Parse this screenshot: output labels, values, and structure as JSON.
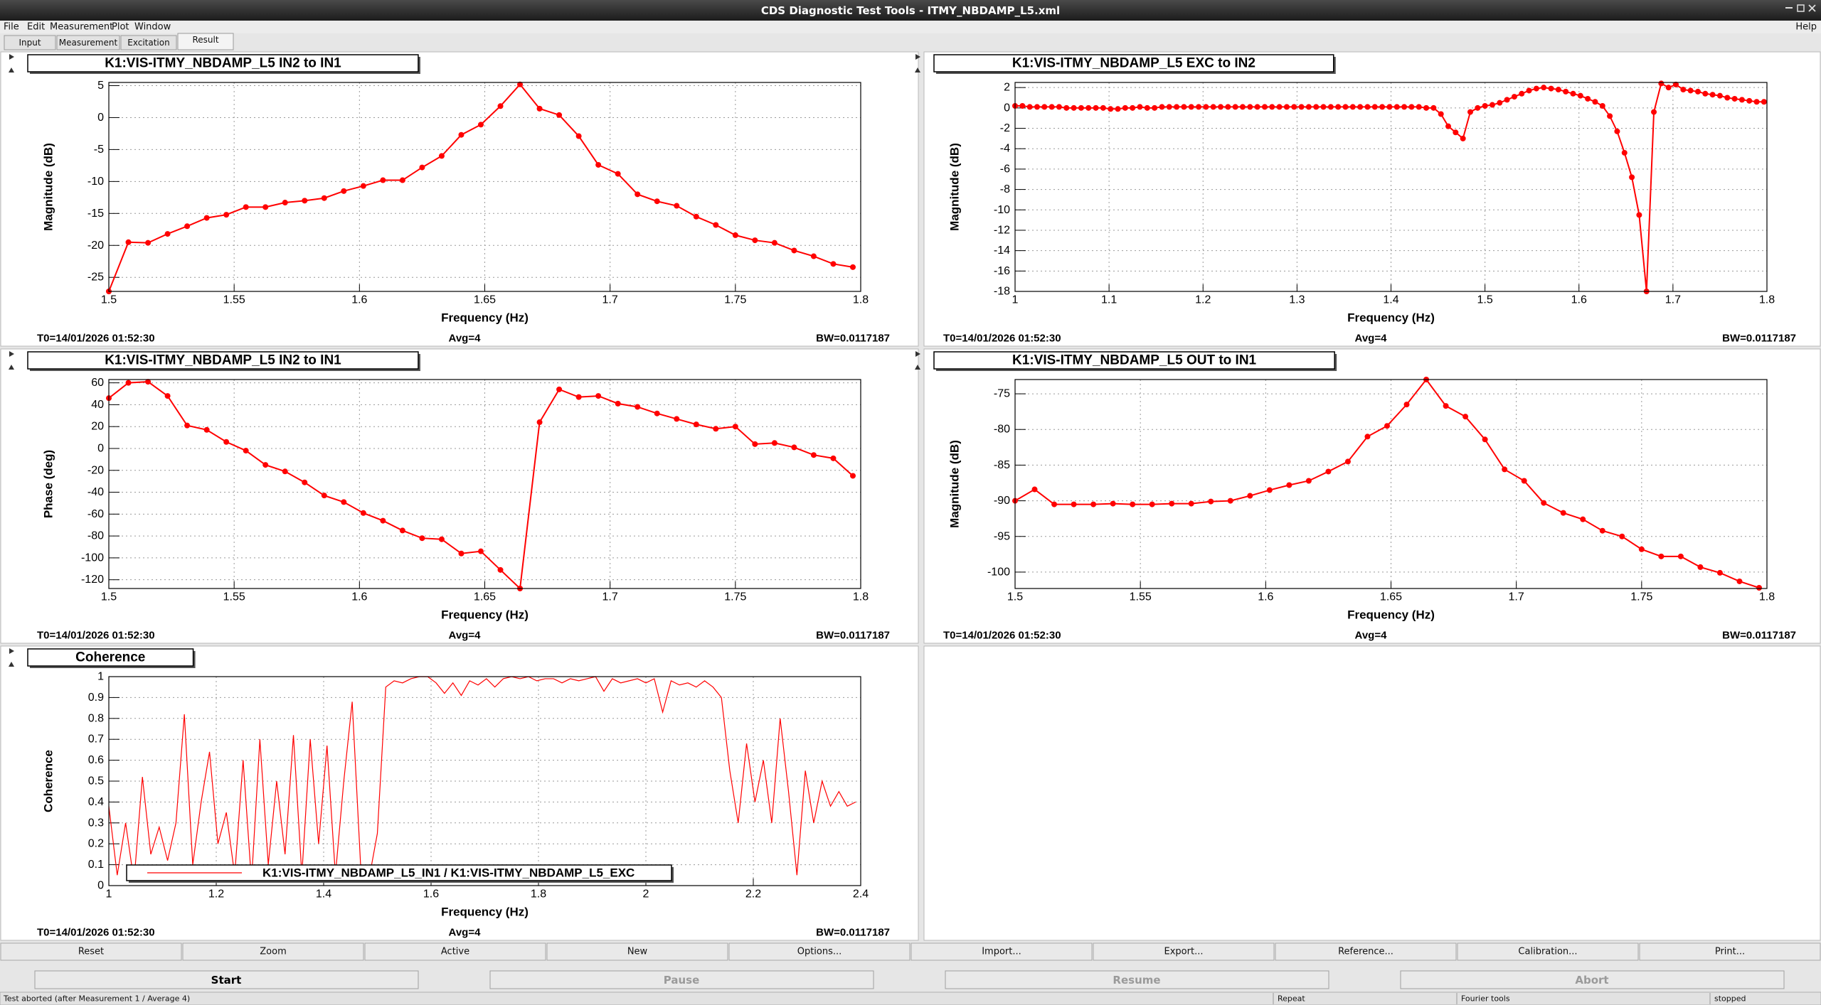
{
  "window": {
    "title": "CDS Diagnostic Test Tools - ITMY_NBDAMP_L5.xml"
  },
  "menu": {
    "items": [
      "File",
      "Edit",
      "Measurement",
      "Plot",
      "Window"
    ],
    "help": "Help"
  },
  "tabs": {
    "labels": [
      "Input",
      "Measurement",
      "Excitation",
      "Result"
    ],
    "active": 3
  },
  "chart_data": [
    {
      "type": "line",
      "title": "K1:VIS-ITMY_NBDAMP_L5 IN2 to IN1",
      "x_label": "Frequency (Hz)",
      "y_label": "Magnitude (dB)",
      "x": [
        1.5,
        1.5078125,
        1.515625,
        1.5234375,
        1.53125,
        1.5390625,
        1.546875,
        1.5546875,
        1.5625,
        1.5703125,
        1.578125,
        1.5859375,
        1.59375,
        1.6015625,
        1.609375,
        1.6171875,
        1.625,
        1.6328125,
        1.640625,
        1.6484375,
        1.65625,
        1.6640625,
        1.671875,
        1.6796875,
        1.6875,
        1.6953125,
        1.703125,
        1.7109375,
        1.71875,
        1.7265625,
        1.734375,
        1.7421875,
        1.75,
        1.7578125,
        1.765625,
        1.7734375,
        1.78125,
        1.7890625,
        1.796875
      ],
      "series": [
        {
          "color": "#ff0000",
          "values": [
            -27.2,
            -19.5,
            -19.6,
            -18.2,
            -17.0,
            -15.7,
            -15.2,
            -14.0,
            -14.0,
            -13.3,
            -13.0,
            -12.6,
            -11.5,
            -10.7,
            -9.8,
            -9.8,
            -7.8,
            -6.0,
            -2.7,
            -1.1,
            1.8,
            5.2,
            1.4,
            0.4,
            -2.9,
            -7.4,
            -8.8,
            -12.0,
            -13.1,
            -13.8,
            -15.5,
            -16.8,
            -18.4,
            -19.2,
            -19.6,
            -20.8,
            -21.7,
            -22.9,
            -23.4
          ]
        }
      ],
      "markers": true,
      "xlim": [
        1.5,
        1.8
      ],
      "ylim": [
        -27.2,
        5.5
      ],
      "xticks": [
        1.5,
        1.55,
        1.6,
        1.65,
        1.7,
        1.75,
        1.8
      ],
      "yticks": [
        5,
        0,
        -5,
        -10,
        -15,
        -20,
        -25
      ],
      "grid": true,
      "footer": [
        "T0=14/01/2026 01:52:30",
        "Avg=4",
        "BW=0.0117187"
      ]
    },
    {
      "type": "line",
      "title": "K1:VIS-ITMY_NBDAMP_L5 EXC to IN2",
      "x_label": "Frequency (Hz)",
      "y_label": "Magnitude (dB)",
      "x": [
        1,
        1.0078125,
        1.015625,
        1.0234375,
        1.03125,
        1.0390625,
        1.046875,
        1.0546875,
        1.0625,
        1.0703125,
        1.078125,
        1.0859375,
        1.09375,
        1.1015625,
        1.109375,
        1.1171875,
        1.125,
        1.1328125,
        1.140625,
        1.1484375,
        1.15625,
        1.1640625,
        1.171875,
        1.1796875,
        1.1875,
        1.1953125,
        1.203125,
        1.2109375,
        1.21875,
        1.2265625,
        1.234375,
        1.2421875,
        1.25,
        1.2578125,
        1.265625,
        1.2734375,
        1.28125,
        1.2890625,
        1.296875,
        1.3046875,
        1.3125,
        1.3203125,
        1.328125,
        1.3359375,
        1.34375,
        1.3515625,
        1.359375,
        1.3671875,
        1.375,
        1.3828125,
        1.390625,
        1.3984375,
        1.40625,
        1.4140625,
        1.421875,
        1.4296875,
        1.4375,
        1.4453125,
        1.453125,
        1.4609375,
        1.46875,
        1.4765625,
        1.484375,
        1.4921875,
        1.5,
        1.5078125,
        1.515625,
        1.5234375,
        1.53125,
        1.5390625,
        1.546875,
        1.5546875,
        1.5625,
        1.5703125,
        1.578125,
        1.5859375,
        1.59375,
        1.6015625,
        1.609375,
        1.6171875,
        1.625,
        1.6328125,
        1.640625,
        1.6484375,
        1.65625,
        1.6640625,
        1.671875,
        1.6796875,
        1.6875,
        1.6953125,
        1.703125,
        1.7109375,
        1.71875,
        1.7265625,
        1.734375,
        1.7421875,
        1.75,
        1.7578125,
        1.765625,
        1.7734375,
        1.78125,
        1.7890625,
        1.796875
      ],
      "series": [
        {
          "color": "#ff0000",
          "values": [
            0.2,
            0.2,
            0.1,
            0.1,
            0.1,
            0.1,
            0.1,
            0.0,
            0.0,
            0.0,
            0.0,
            0.0,
            0.0,
            -0.1,
            -0.1,
            0.0,
            0.0,
            0.1,
            0.0,
            0.0,
            0.1,
            0.1,
            0.1,
            0.1,
            0.1,
            0.1,
            0.1,
            0.1,
            0.1,
            0.1,
            0.1,
            0.1,
            0.1,
            0.1,
            0.1,
            0.1,
            0.1,
            0.1,
            0.1,
            0.1,
            0.1,
            0.1,
            0.1,
            0.1,
            0.1,
            0.1,
            0.1,
            0.1,
            0.1,
            0.1,
            0.1,
            0.1,
            0.1,
            0.1,
            0.1,
            0.1,
            0.0,
            0.0,
            -0.6,
            -1.8,
            -2.4,
            -3.0,
            -0.4,
            0.0,
            0.2,
            0.3,
            0.5,
            0.8,
            1.1,
            1.4,
            1.7,
            1.9,
            2.0,
            1.9,
            1.8,
            1.6,
            1.4,
            1.2,
            0.9,
            0.6,
            0.2,
            -0.8,
            -2.3,
            -4.4,
            -6.8,
            -10.5,
            -18,
            -0.4,
            2.4,
            2.0,
            2.3,
            1.8,
            1.7,
            1.6,
            1.4,
            1.3,
            1.2,
            1.0,
            0.9,
            0.8,
            0.7,
            0.6,
            0.6
          ]
        }
      ],
      "markers": true,
      "xlim": [
        1,
        1.8
      ],
      "ylim": [
        -18,
        2.5
      ],
      "xticks": [
        1,
        1.1,
        1.2,
        1.3,
        1.4,
        1.5,
        1.6,
        1.7,
        1.8
      ],
      "yticks": [
        2,
        0,
        -2,
        -4,
        -6,
        -8,
        -10,
        -12,
        -14,
        -16,
        -18
      ],
      "grid": true,
      "footer": [
        "T0=14/01/2026 01:52:30",
        "Avg=4",
        "BW=0.0117187"
      ]
    },
    {
      "type": "line",
      "title": "K1:VIS-ITMY_NBDAMP_L5 IN2 to IN1",
      "x_label": "Frequency (Hz)",
      "y_label": "Phase (deg)",
      "x": [
        1.5,
        1.5078125,
        1.515625,
        1.5234375,
        1.53125,
        1.5390625,
        1.546875,
        1.5546875,
        1.5625,
        1.5703125,
        1.578125,
        1.5859375,
        1.59375,
        1.6015625,
        1.609375,
        1.6171875,
        1.625,
        1.6328125,
        1.640625,
        1.6484375,
        1.65625,
        1.6640625,
        1.671875,
        1.6796875,
        1.6875,
        1.6953125,
        1.703125,
        1.7109375,
        1.71875,
        1.7265625,
        1.734375,
        1.7421875,
        1.75,
        1.7578125,
        1.765625,
        1.7734375,
        1.78125,
        1.7890625,
        1.796875
      ],
      "series": [
        {
          "color": "#ff0000",
          "values": [
            46,
            60,
            61,
            48,
            21,
            17,
            6,
            -2,
            -15,
            -21,
            -31,
            -43,
            -49,
            -59,
            -66,
            -75,
            -82,
            -83,
            -96,
            -94,
            -111,
            -128,
            24,
            54,
            47,
            48,
            41,
            38,
            32,
            27,
            22,
            18,
            20,
            4,
            5,
            1,
            -6,
            -9,
            -25
          ]
        }
      ],
      "markers": true,
      "xlim": [
        1.5,
        1.8
      ],
      "ylim": [
        -128,
        63
      ],
      "xticks": [
        1.5,
        1.55,
        1.6,
        1.65,
        1.7,
        1.75,
        1.8
      ],
      "yticks": [
        60,
        40,
        20,
        0,
        -20,
        -40,
        -60,
        -80,
        -100,
        -120
      ],
      "grid": true,
      "footer": [
        "T0=14/01/2026 01:52:30",
        "Avg=4",
        "BW=0.0117187"
      ]
    },
    {
      "type": "line",
      "title": "K1:VIS-ITMY_NBDAMP_L5 OUT to IN1",
      "x_label": "Frequency (Hz)",
      "y_label": "Magnitude (dB)",
      "x": [
        1.5,
        1.5078125,
        1.515625,
        1.5234375,
        1.53125,
        1.5390625,
        1.546875,
        1.5546875,
        1.5625,
        1.5703125,
        1.578125,
        1.5859375,
        1.59375,
        1.6015625,
        1.609375,
        1.6171875,
        1.625,
        1.6328125,
        1.640625,
        1.6484375,
        1.65625,
        1.6640625,
        1.671875,
        1.6796875,
        1.6875,
        1.6953125,
        1.703125,
        1.7109375,
        1.71875,
        1.7265625,
        1.734375,
        1.7421875,
        1.75,
        1.7578125,
        1.765625,
        1.7734375,
        1.78125,
        1.7890625,
        1.796875
      ],
      "series": [
        {
          "color": "#ff0000",
          "values": [
            -90,
            -88.4,
            -90.5,
            -90.5,
            -90.5,
            -90.4,
            -90.5,
            -90.5,
            -90.4,
            -90.4,
            -90.1,
            -90,
            -89.3,
            -88.5,
            -87.8,
            -87.2,
            -85.9,
            -84.5,
            -81,
            -79.5,
            -76.5,
            -73,
            -76.7,
            -78.2,
            -81.4,
            -85.6,
            -87.2,
            -90.3,
            -91.7,
            -92.6,
            -94.2,
            -95,
            -96.8,
            -97.8,
            -97.8,
            -99.3,
            -100.1,
            -101.3,
            -102.2
          ]
        }
      ],
      "markers": true,
      "xlim": [
        1.5,
        1.8
      ],
      "ylim": [
        -102.3,
        -73
      ],
      "xticks": [
        1.5,
        1.55,
        1.6,
        1.65,
        1.7,
        1.75,
        1.8
      ],
      "yticks": [
        -75,
        -80,
        -85,
        -90,
        -95,
        -100
      ],
      "grid": true,
      "footer": [
        "T0=14/01/2026 01:52:30",
        "Avg=4",
        "BW=0.0117187"
      ]
    },
    {
      "type": "line",
      "title": "Coherence",
      "x_label": "Frequency (Hz)",
      "y_label": "Coherence",
      "x": [
        1,
        1.015625,
        1.03125,
        1.046875,
        1.0625,
        1.078125,
        1.09375,
        1.109375,
        1.125,
        1.140625,
        1.15625,
        1.171875,
        1.1875,
        1.203125,
        1.21875,
        1.234375,
        1.25,
        1.265625,
        1.28125,
        1.296875,
        1.3125,
        1.328125,
        1.34375,
        1.359375,
        1.375,
        1.390625,
        1.40625,
        1.421875,
        1.4375,
        1.453125,
        1.46875,
        1.484375,
        1.5,
        1.515625,
        1.53125,
        1.546875,
        1.5625,
        1.578125,
        1.59375,
        1.609375,
        1.625,
        1.640625,
        1.65625,
        1.671875,
        1.6875,
        1.703125,
        1.71875,
        1.734375,
        1.75,
        1.765625,
        1.78125,
        1.796875,
        1.8125,
        1.828125,
        1.84375,
        1.859375,
        1.875,
        1.890625,
        1.90625,
        1.921875,
        1.9375,
        1.953125,
        1.96875,
        1.984375,
        2,
        2.015625,
        2.03125,
        2.046875,
        2.0625,
        2.078125,
        2.09375,
        2.109375,
        2.125,
        2.140625,
        2.15625,
        2.171875,
        2.1875,
        2.203125,
        2.21875,
        2.234375,
        2.25,
        2.265625,
        2.28125,
        2.296875,
        2.3125,
        2.328125,
        2.34375,
        2.359375,
        2.375,
        2.390625
      ],
      "series": [
        {
          "name": "K1:VIS-ITMY_NBDAMP_L5_IN1 / K1:VIS-ITMY_NBDAMP_L5_EXC",
          "color": "#ff0000",
          "values": [
            0.38,
            0.05,
            0.3,
            0.02,
            0.52,
            0.15,
            0.28,
            0.12,
            0.3,
            0.82,
            0.1,
            0.4,
            0.64,
            0.2,
            0.35,
            0.05,
            0.6,
            0.02,
            0.7,
            0.1,
            0.5,
            0.15,
            0.72,
            0.05,
            0.7,
            0.2,
            0.67,
            0.05,
            0.5,
            0.88,
            0.1,
            0.03,
            0.25,
            0.95,
            0.98,
            0.97,
            0.99,
            1.0,
            1.0,
            0.97,
            0.92,
            0.97,
            0.91,
            0.98,
            0.96,
            0.99,
            0.95,
            0.99,
            1.0,
            0.99,
            1.0,
            0.98,
            0.99,
            0.99,
            0.97,
            0.99,
            0.98,
            0.99,
            1.0,
            0.93,
            0.99,
            0.97,
            0.98,
            0.99,
            0.97,
            0.99,
            0.83,
            0.98,
            0.96,
            0.97,
            0.95,
            0.98,
            0.95,
            0.9,
            0.55,
            0.3,
            0.68,
            0.4,
            0.6,
            0.3,
            0.8,
            0.45,
            0.05,
            0.55,
            0.3,
            0.5,
            0.38,
            0.45,
            0.38,
            0.4
          ]
        }
      ],
      "markers": false,
      "legend": "bottom-left",
      "xlim": [
        1,
        2.4
      ],
      "ylim": [
        0,
        1
      ],
      "xticks": [
        1,
        1.2,
        1.4,
        1.6,
        1.8,
        2,
        2.2,
        2.4
      ],
      "yticks": [
        0,
        0.1,
        0.2,
        0.3,
        0.4,
        0.5,
        0.6,
        0.7,
        0.8,
        0.9,
        1
      ],
      "grid": true,
      "footer": [
        "T0=14/01/2026 01:52:30",
        "Avg=4",
        "BW=0.0117187"
      ]
    }
  ],
  "buttons": [
    "Reset",
    "Zoom",
    "Active",
    "New",
    "Options...",
    "Import...",
    "Export...",
    "Reference...",
    "Calibration...",
    "Print..."
  ],
  "controls": {
    "labels": [
      "Start",
      "Pause",
      "Resume",
      "Abort"
    ],
    "enabled": [
      true,
      false,
      false,
      false
    ]
  },
  "status": {
    "message": "Test aborted (after Measurement 1 / Average 4)",
    "fields": [
      "Repeat",
      "Fourier tools",
      "stopped"
    ]
  }
}
